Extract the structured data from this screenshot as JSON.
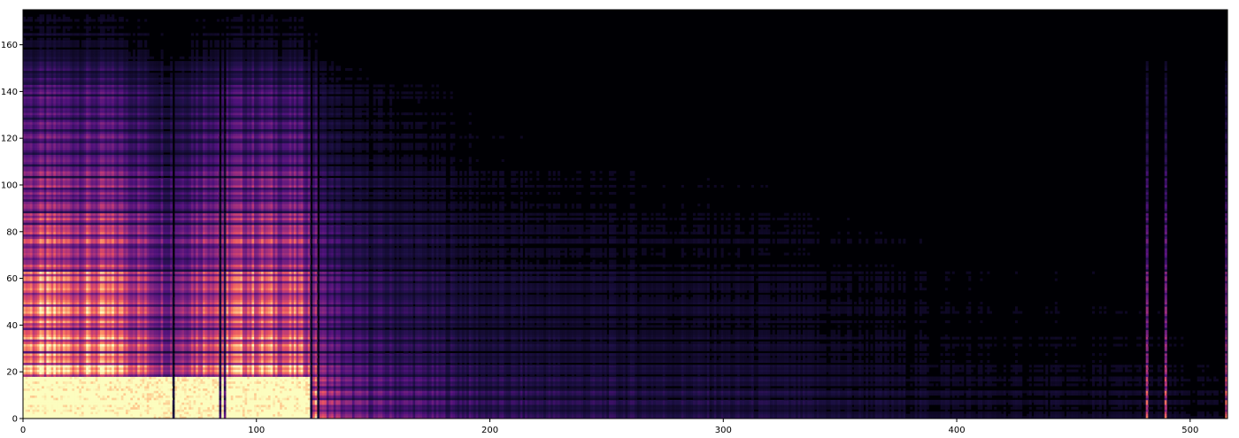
{
  "chart_data": {
    "type": "heatmap",
    "title": "",
    "xlabel": "",
    "ylabel": "",
    "xlim": [
      0,
      516
    ],
    "ylim": [
      0,
      175
    ],
    "x_ticks": [
      0,
      100,
      200,
      300,
      400,
      500
    ],
    "y_ticks": [
      0,
      20,
      40,
      60,
      80,
      100,
      120,
      140,
      160
    ],
    "x_tick_labels": [
      "0",
      "100",
      "200",
      "300",
      "400",
      "500"
    ],
    "y_tick_labels": [
      "0",
      "20",
      "40",
      "60",
      "80",
      "100",
      "120",
      "140",
      "160"
    ],
    "colormap": "magma",
    "grid": false,
    "colorbar": false,
    "grid_resolution": {
      "columns": 516,
      "rows": 175
    },
    "column_profile": [
      {
        "x": 0,
        "energy": 1.0
      },
      {
        "x": 20,
        "energy": 0.97
      },
      {
        "x": 40,
        "energy": 0.93
      },
      {
        "x": 62,
        "energy": 0.55
      },
      {
        "x": 80,
        "energy": 0.88
      },
      {
        "x": 100,
        "energy": 0.92
      },
      {
        "x": 120,
        "energy": 0.82
      },
      {
        "x": 128,
        "energy": 0.45
      },
      {
        "x": 140,
        "energy": 0.3
      },
      {
        "x": 200,
        "energy": 0.17
      },
      {
        "x": 300,
        "energy": 0.13
      },
      {
        "x": 420,
        "energy": 0.08
      },
      {
        "x": 480,
        "energy": 0.08
      },
      {
        "x": 516,
        "energy": 0.06
      }
    ],
    "row_profile": [
      {
        "y": 0,
        "energy": 1.0
      },
      {
        "y": 16,
        "energy": 0.9
      },
      {
        "y": 24,
        "energy": 0.68
      },
      {
        "y": 40,
        "energy": 0.66
      },
      {
        "y": 60,
        "energy": 0.58
      },
      {
        "y": 80,
        "energy": 0.46
      },
      {
        "y": 100,
        "energy": 0.38
      },
      {
        "y": 120,
        "energy": 0.28
      },
      {
        "y": 140,
        "energy": 0.24
      },
      {
        "y": 160,
        "energy": 0.1
      },
      {
        "y": 175,
        "energy": 0.05
      }
    ],
    "bright_block": {
      "x": [
        0,
        122
      ],
      "y": [
        0,
        17
      ]
    },
    "dark_columns": [
      64,
      84,
      86,
      123,
      126
    ],
    "bright_columns": [
      481,
      489,
      515
    ]
  }
}
